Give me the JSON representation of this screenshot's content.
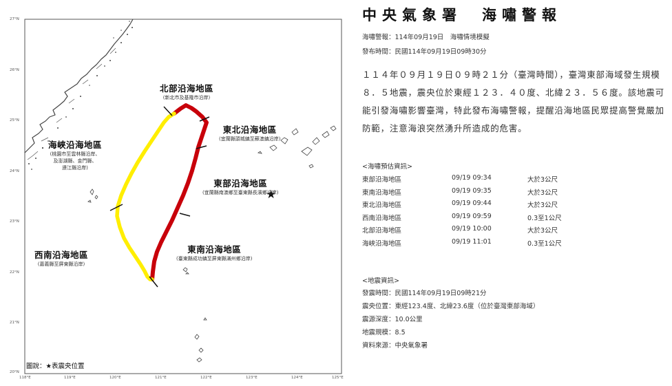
{
  "map": {
    "zones": [
      {
        "id": "north",
        "name": "北部沿海地區",
        "subtitle": "(新北市及基隆市沿岸)"
      },
      {
        "id": "northeast",
        "name": "東北沿海地區",
        "subtitle": "(宜蘭縣頭城鎮至蘇澳鎮沿岸)"
      },
      {
        "id": "east",
        "name": "東部沿海地區",
        "subtitle": "(宜蘭縣南澳鄉至臺東縣長濱鄉沿岸)"
      },
      {
        "id": "southeast",
        "name": "東南沿海地區",
        "subtitle": "(臺東縣成功鎮至屏東縣滿州鄉沿岸)"
      },
      {
        "id": "southwest",
        "name": "西南沿海地區",
        "subtitle": "(嘉義縣至屏東縣沿岸)"
      },
      {
        "id": "strait",
        "name": "海峽沿海地區",
        "subtitle_lines": [
          "(桃園市至雲林縣沿岸、",
          "及澎湖縣、金門縣、",
          "連江縣沿岸)"
        ]
      }
    ],
    "tsunami_colors": {
      "warning": "#c8000a",
      "advisory": "#ffee00"
    },
    "lat_ticks": [
      "27°N",
      "26°N",
      "25°N",
      "24°N",
      "23°N",
      "22°N",
      "21°N",
      "20°N"
    ],
    "lon_ticks": [
      "118°E",
      "119°E",
      "120°E",
      "121°E",
      "122°E",
      "123°E",
      "124°E",
      "125°E"
    ],
    "legend": {
      "prefix": "圖說：",
      "symbol": "★",
      "text": "表震央位置"
    }
  },
  "bulletin": {
    "title": "中央氣象署　海嘯警報",
    "meta": [
      "海嘯警報：114年09月19日　海嘯情境模擬",
      "發布時間：民國114年09月19日09時30分"
    ],
    "body": "１１４年０９月１９日０９時２１分（臺灣時間），臺灣東部海域發生規模８．５地震，震央位於東經１２３．４０度、北緯２３．５６度。該地震可能引發海嘯影響臺灣，特此發布海嘯警報，提醒沿海地區民眾提高警覺嚴加防範，注意海浪突然湧升所造成的危害。",
    "arrival_heading": "<海嘯預估資訊>",
    "arrivals": [
      {
        "region": "東部沿海地區",
        "time": "09/19 09:34",
        "height": "大於3公尺"
      },
      {
        "region": "東南沿海地區",
        "time": "09/19 09:35",
        "height": "大於3公尺"
      },
      {
        "region": "東北沿海地區",
        "time": "09/19 09:44",
        "height": "大於3公尺"
      },
      {
        "region": "西南沿海地區",
        "time": "09/19 09:59",
        "height": "0.3至1公尺"
      },
      {
        "region": "北部沿海地區",
        "time": "09/19 10:00",
        "height": "大於3公尺"
      },
      {
        "region": "海峽沿海地區",
        "time": "09/19 11:01",
        "height": "0.3至1公尺"
      }
    ],
    "quake_heading": "<地震資訊>",
    "quake": [
      "發震時間：民國114年09月19日09時21分",
      "震央位置：東經123.4度、北緯23.6度（位於臺灣東部海域）",
      "震源深度：10.0公里",
      "地震規模：8.5",
      "資料來源：中央氣象署"
    ]
  }
}
